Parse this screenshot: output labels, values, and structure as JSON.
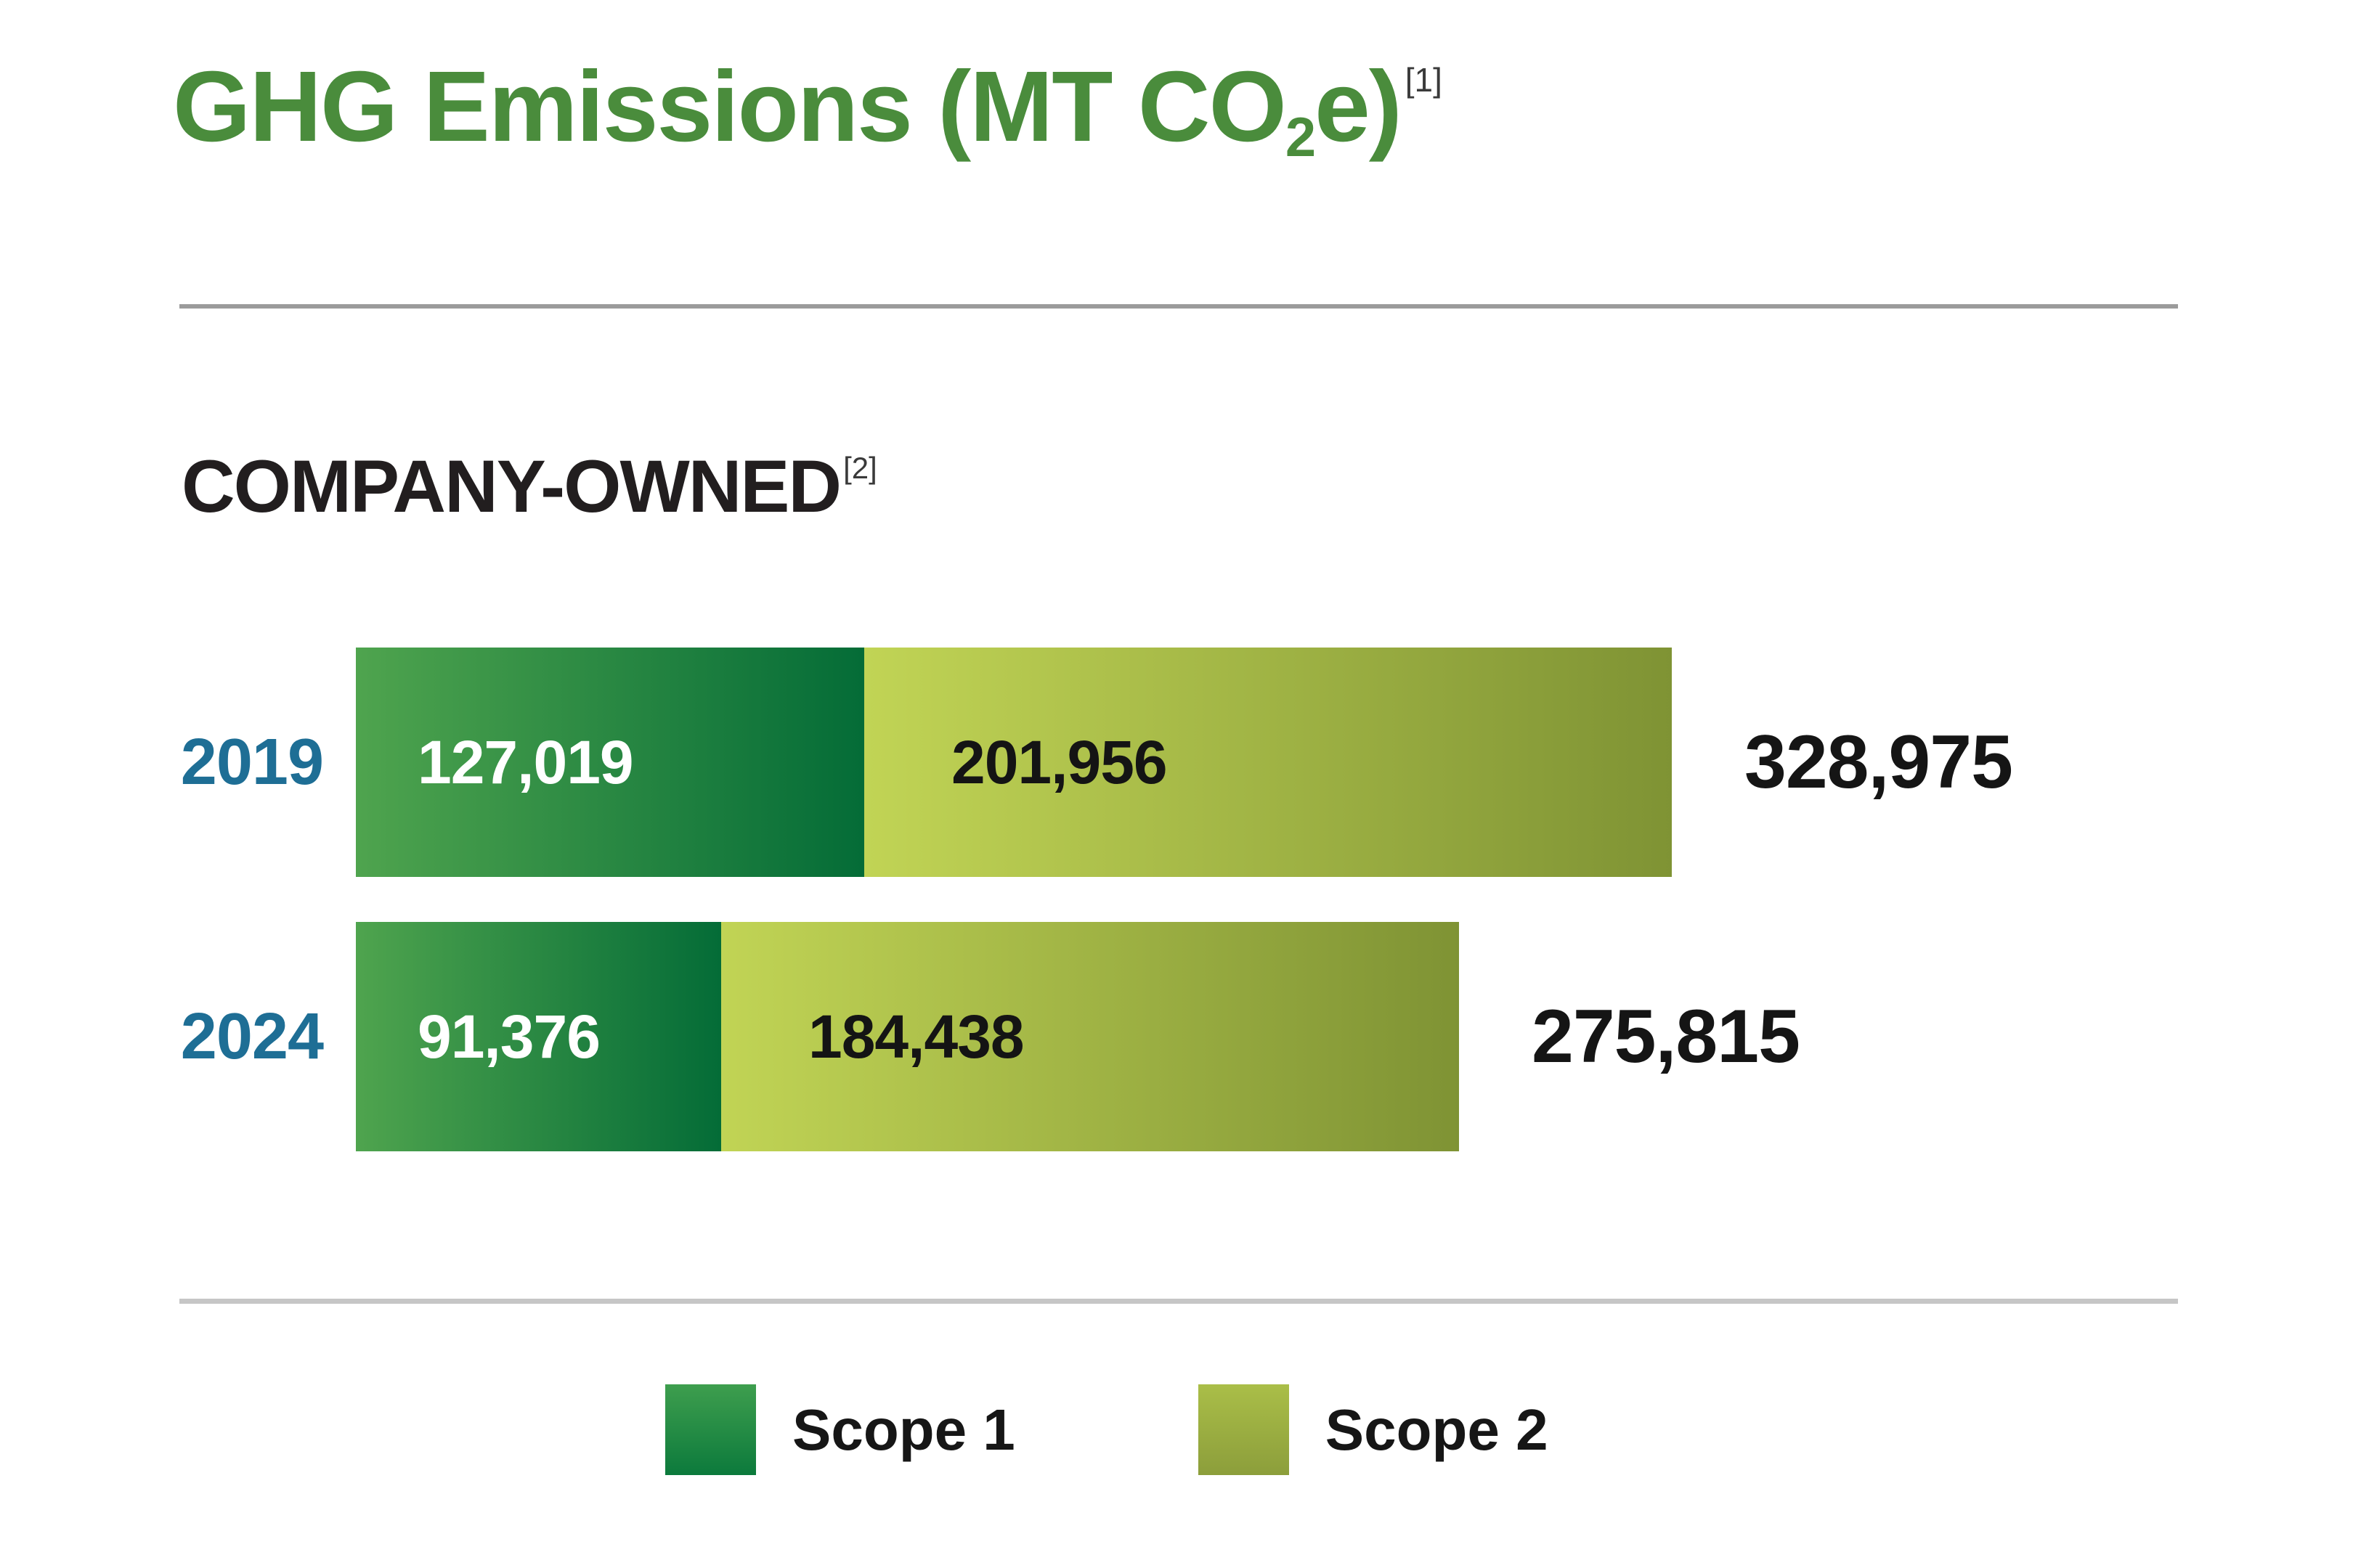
{
  "title": {
    "prefix": "GHG Emissions (MT CO",
    "subscript": "2",
    "suffix": "e)",
    "footnote": "[1]"
  },
  "section": {
    "heading": "COMPANY-OWNED",
    "footnote": "[2]"
  },
  "rows": [
    {
      "year": "2019",
      "scope1_label": "127,019",
      "scope2_label": "201,956",
      "total_label": "328,975"
    },
    {
      "year": "2024",
      "scope1_label": "91,376",
      "scope2_label": "184,438",
      "total_label": "275,815"
    }
  ],
  "legend": {
    "items": [
      {
        "label": "Scope 1",
        "color": "#1E7C3E"
      },
      {
        "label": "Scope 2",
        "color": "#9AAD40"
      }
    ]
  },
  "colors": {
    "title_green": "#4A8C3C",
    "year_blue": "#1E6E95",
    "scope1_gradient_start": "#4FA44E",
    "scope1_gradient_end": "#046C37",
    "scope2_gradient_start": "#C1D455",
    "scope2_gradient_end": "#7F9334",
    "rule_top": "#9B9B9B",
    "rule_bottom": "#C6C6C6",
    "text_dark": "#151515"
  },
  "chart_data": {
    "type": "bar",
    "orientation": "horizontal",
    "stacked": true,
    "title": "GHG Emissions (MT CO2e)",
    "subtitle": "COMPANY-OWNED",
    "categories": [
      "2019",
      "2024"
    ],
    "series": [
      {
        "name": "Scope 1",
        "values": [
          127019,
          91376
        ]
      },
      {
        "name": "Scope 2",
        "values": [
          201956,
          184438
        ]
      }
    ],
    "totals": [
      328975,
      275815
    ],
    "value_labels": true,
    "total_labels": true,
    "legend_position": "bottom",
    "axes_visible": false,
    "grid": false
  }
}
